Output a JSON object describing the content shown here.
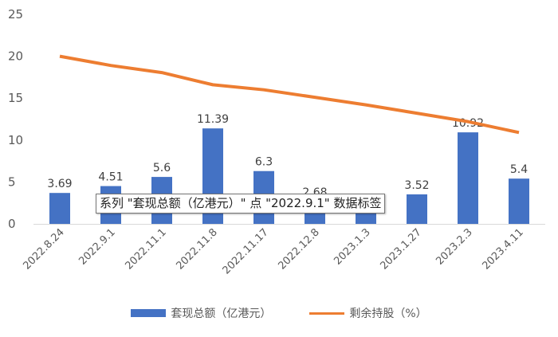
{
  "chart_data": {
    "type": "bar+line",
    "categories": [
      "2022.8.24",
      "2022.9.1",
      "2022.11.1",
      "2022.11.8",
      "2022.11.17",
      "2022.12.8",
      "2023.1.3",
      "2023.1.27",
      "2023.2.3",
      "2023.4.11"
    ],
    "series": [
      {
        "name": "套现总额（亿港元）",
        "type": "bar",
        "color": "#4472C4",
        "values": [
          3.69,
          4.51,
          5.6,
          11.39,
          6.3,
          2.68,
          2.6,
          3.52,
          10.92,
          5.4
        ],
        "labels": [
          "3.69",
          "4.51",
          "5.6",
          "11.39",
          "6.3",
          "2.68",
          "",
          "3.52",
          "10.92",
          "5.4"
        ]
      },
      {
        "name": "剩余持股（%）",
        "type": "line",
        "color": "#ED7D31",
        "values": [
          20,
          18.9,
          18.05,
          16.6,
          16.0,
          15.1,
          14.2,
          13.2,
          12.2,
          10.9
        ]
      }
    ],
    "yticks": [
      "0",
      "5",
      "10",
      "15",
      "20",
      "25"
    ],
    "ylim": [
      0,
      25
    ],
    "grid": false,
    "legend": "bottom"
  },
  "tooltip": {
    "text": "系列 \"套现总额（亿港元）\" 点 \"2022.9.1\" 数据标签"
  }
}
